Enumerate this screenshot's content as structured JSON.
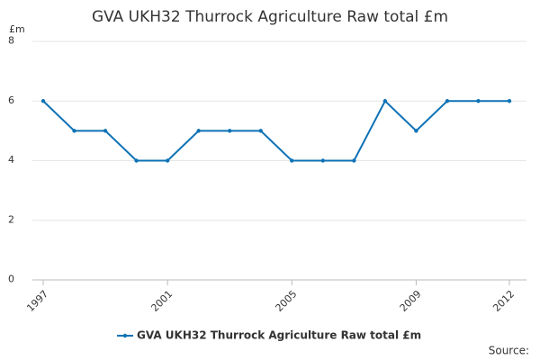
{
  "chart_data": {
    "type": "line",
    "title": "GVA UKH32 Thurrock Agriculture Raw total £m",
    "y_label": "£m",
    "source": "Source:",
    "x": [
      1997,
      1998,
      1999,
      2000,
      2001,
      2002,
      2003,
      2004,
      2005,
      2006,
      2007,
      2008,
      2009,
      2010,
      2011,
      2012
    ],
    "series": [
      {
        "name": "GVA UKH32 Thurrock Agriculture Raw total £m",
        "color": "#0e72b5",
        "values": [
          6,
          5,
          5,
          4,
          4,
          5,
          5,
          5,
          4,
          4,
          4,
          6,
          5,
          6,
          6,
          6
        ]
      }
    ],
    "xlim": [
      1997,
      2012
    ],
    "xticks": [
      1997,
      2001,
      2005,
      2009,
      2012
    ],
    "ylim": [
      0,
      8
    ],
    "yticks": [
      0,
      2,
      4,
      6,
      8
    ],
    "grid": true
  }
}
